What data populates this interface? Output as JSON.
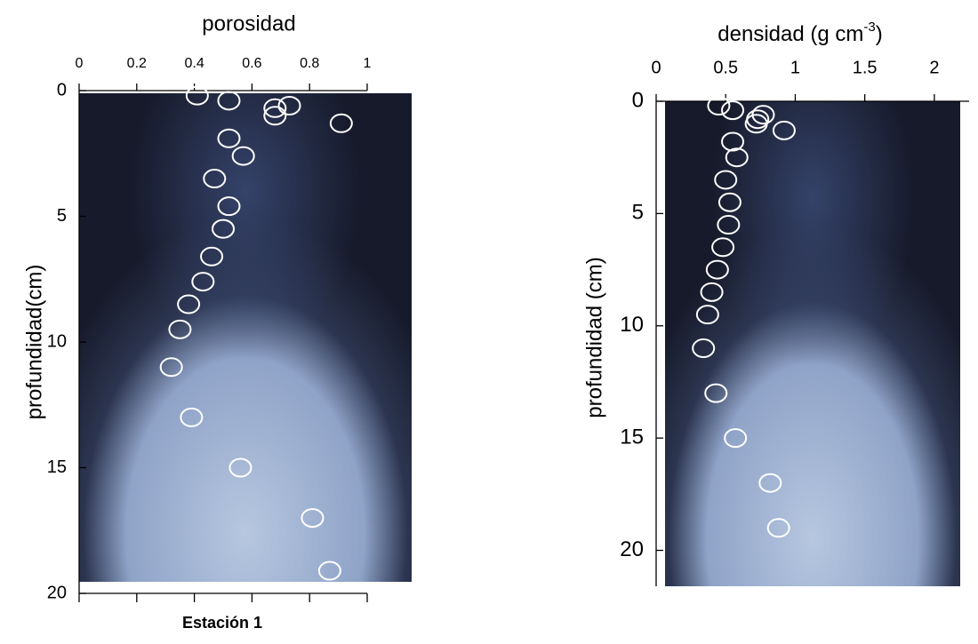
{
  "chart_data": [
    {
      "type": "scatter",
      "xlabel": "porosidad",
      "ylabel": "profundidad(cm)",
      "caption": "Estación 1",
      "xlim": [
        0,
        1
      ],
      "xticks": [
        0,
        0.2,
        0.4,
        0.6,
        0.8,
        1
      ],
      "ylim": [
        0,
        20
      ],
      "yticks": [
        0,
        5,
        10,
        15,
        20
      ],
      "color": "#ffffff",
      "x": [
        0.41,
        0.52,
        0.73,
        0.68,
        0.68,
        0.91,
        0.52,
        0.57,
        0.47,
        0.52,
        0.5,
        0.46,
        0.43,
        0.38,
        0.35,
        0.32,
        0.39,
        0.56,
        0.81,
        0.87
      ],
      "values": [
        0.2,
        0.4,
        0.6,
        0.7,
        1.0,
        1.3,
        1.9,
        2.6,
        3.5,
        4.6,
        5.5,
        6.6,
        7.6,
        8.5,
        9.5,
        11,
        13,
        15,
        17,
        19.1
      ]
    },
    {
      "type": "scatter",
      "xlabel": {
        "text": "densidad (g cm",
        "sup": "-3",
        "tail": ")"
      },
      "ylabel": "profundidad (cm)",
      "xlim": [
        0,
        2.25
      ],
      "xticks": [
        0,
        0.5,
        1,
        1.5,
        2
      ],
      "ylim": [
        0,
        21.6
      ],
      "yticks": [
        0,
        5,
        10,
        15,
        20
      ],
      "color": "#ffffff",
      "x": [
        0.45,
        0.55,
        0.77,
        0.73,
        0.72,
        0.92,
        0.55,
        0.58,
        0.5,
        0.53,
        0.52,
        0.48,
        0.44,
        0.4,
        0.37,
        0.34,
        0.43,
        0.57,
        0.82,
        0.88
      ],
      "values": [
        0.2,
        0.4,
        0.6,
        0.8,
        1.0,
        1.3,
        1.8,
        2.5,
        3.5,
        4.5,
        5.5,
        6.5,
        7.5,
        8.5,
        9.5,
        11,
        13,
        15,
        17,
        19
      ]
    }
  ]
}
